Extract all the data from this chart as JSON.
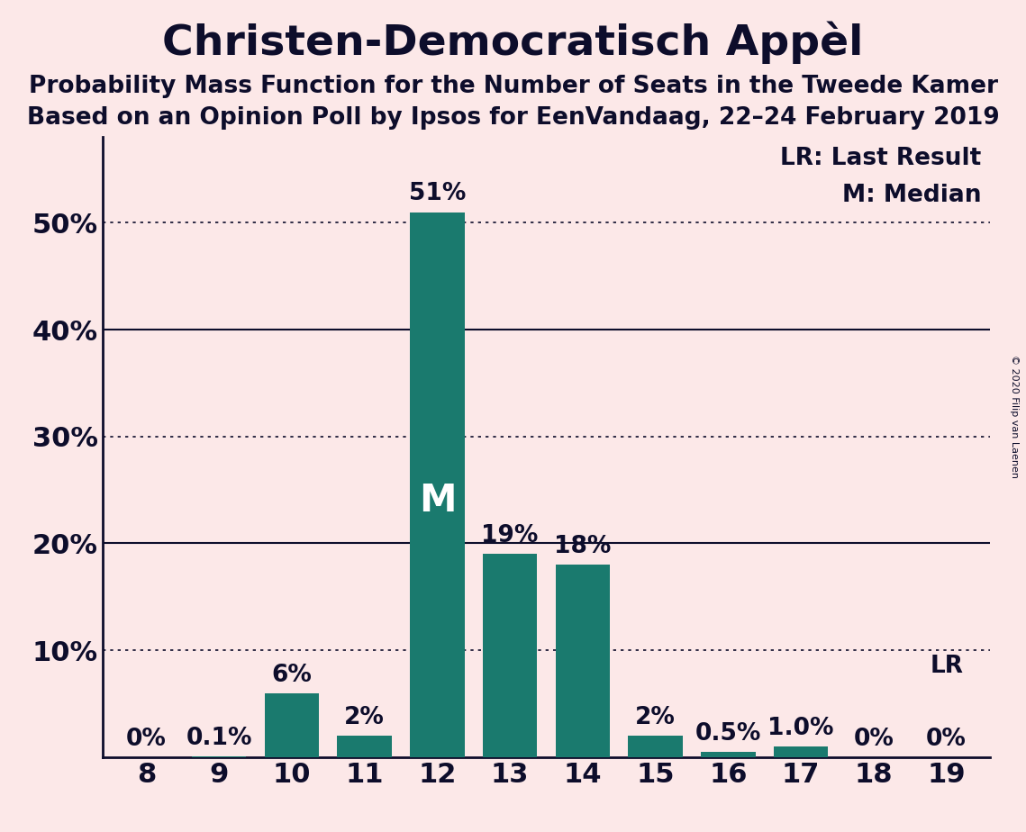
{
  "title": "Christen-Democratisch Appèl",
  "subtitle1": "Probability Mass Function for the Number of Seats in the Tweede Kamer",
  "subtitle2": "Based on an Opinion Poll by Ipsos for EenVandaag, 22–24 February 2019",
  "copyright": "© 2020 Filip van Laenen",
  "categories": [
    8,
    9,
    10,
    11,
    12,
    13,
    14,
    15,
    16,
    17,
    18,
    19
  ],
  "values": [
    0.0,
    0.1,
    6.0,
    2.0,
    51.0,
    19.0,
    18.0,
    2.0,
    0.5,
    1.0,
    0.0,
    0.0
  ],
  "labels": [
    "0%",
    "0.1%",
    "6%",
    "2%",
    "51%",
    "19%",
    "18%",
    "2%",
    "0.5%",
    "1.0%",
    "0%",
    "0%"
  ],
  "bar_color": "#1a7a6e",
  "background_color": "#fce8e8",
  "median_bar": 12,
  "lr_bar": 19,
  "yticks": [
    0,
    10,
    20,
    30,
    40,
    50
  ],
  "ylim": [
    0,
    58
  ],
  "solid_lines": [
    20,
    40
  ],
  "dotted_lines": [
    10,
    30,
    50
  ],
  "title_fontsize": 34,
  "subtitle_fontsize": 19,
  "label_fontsize": 19,
  "axis_fontsize": 22,
  "text_color": "#0d0d2b"
}
